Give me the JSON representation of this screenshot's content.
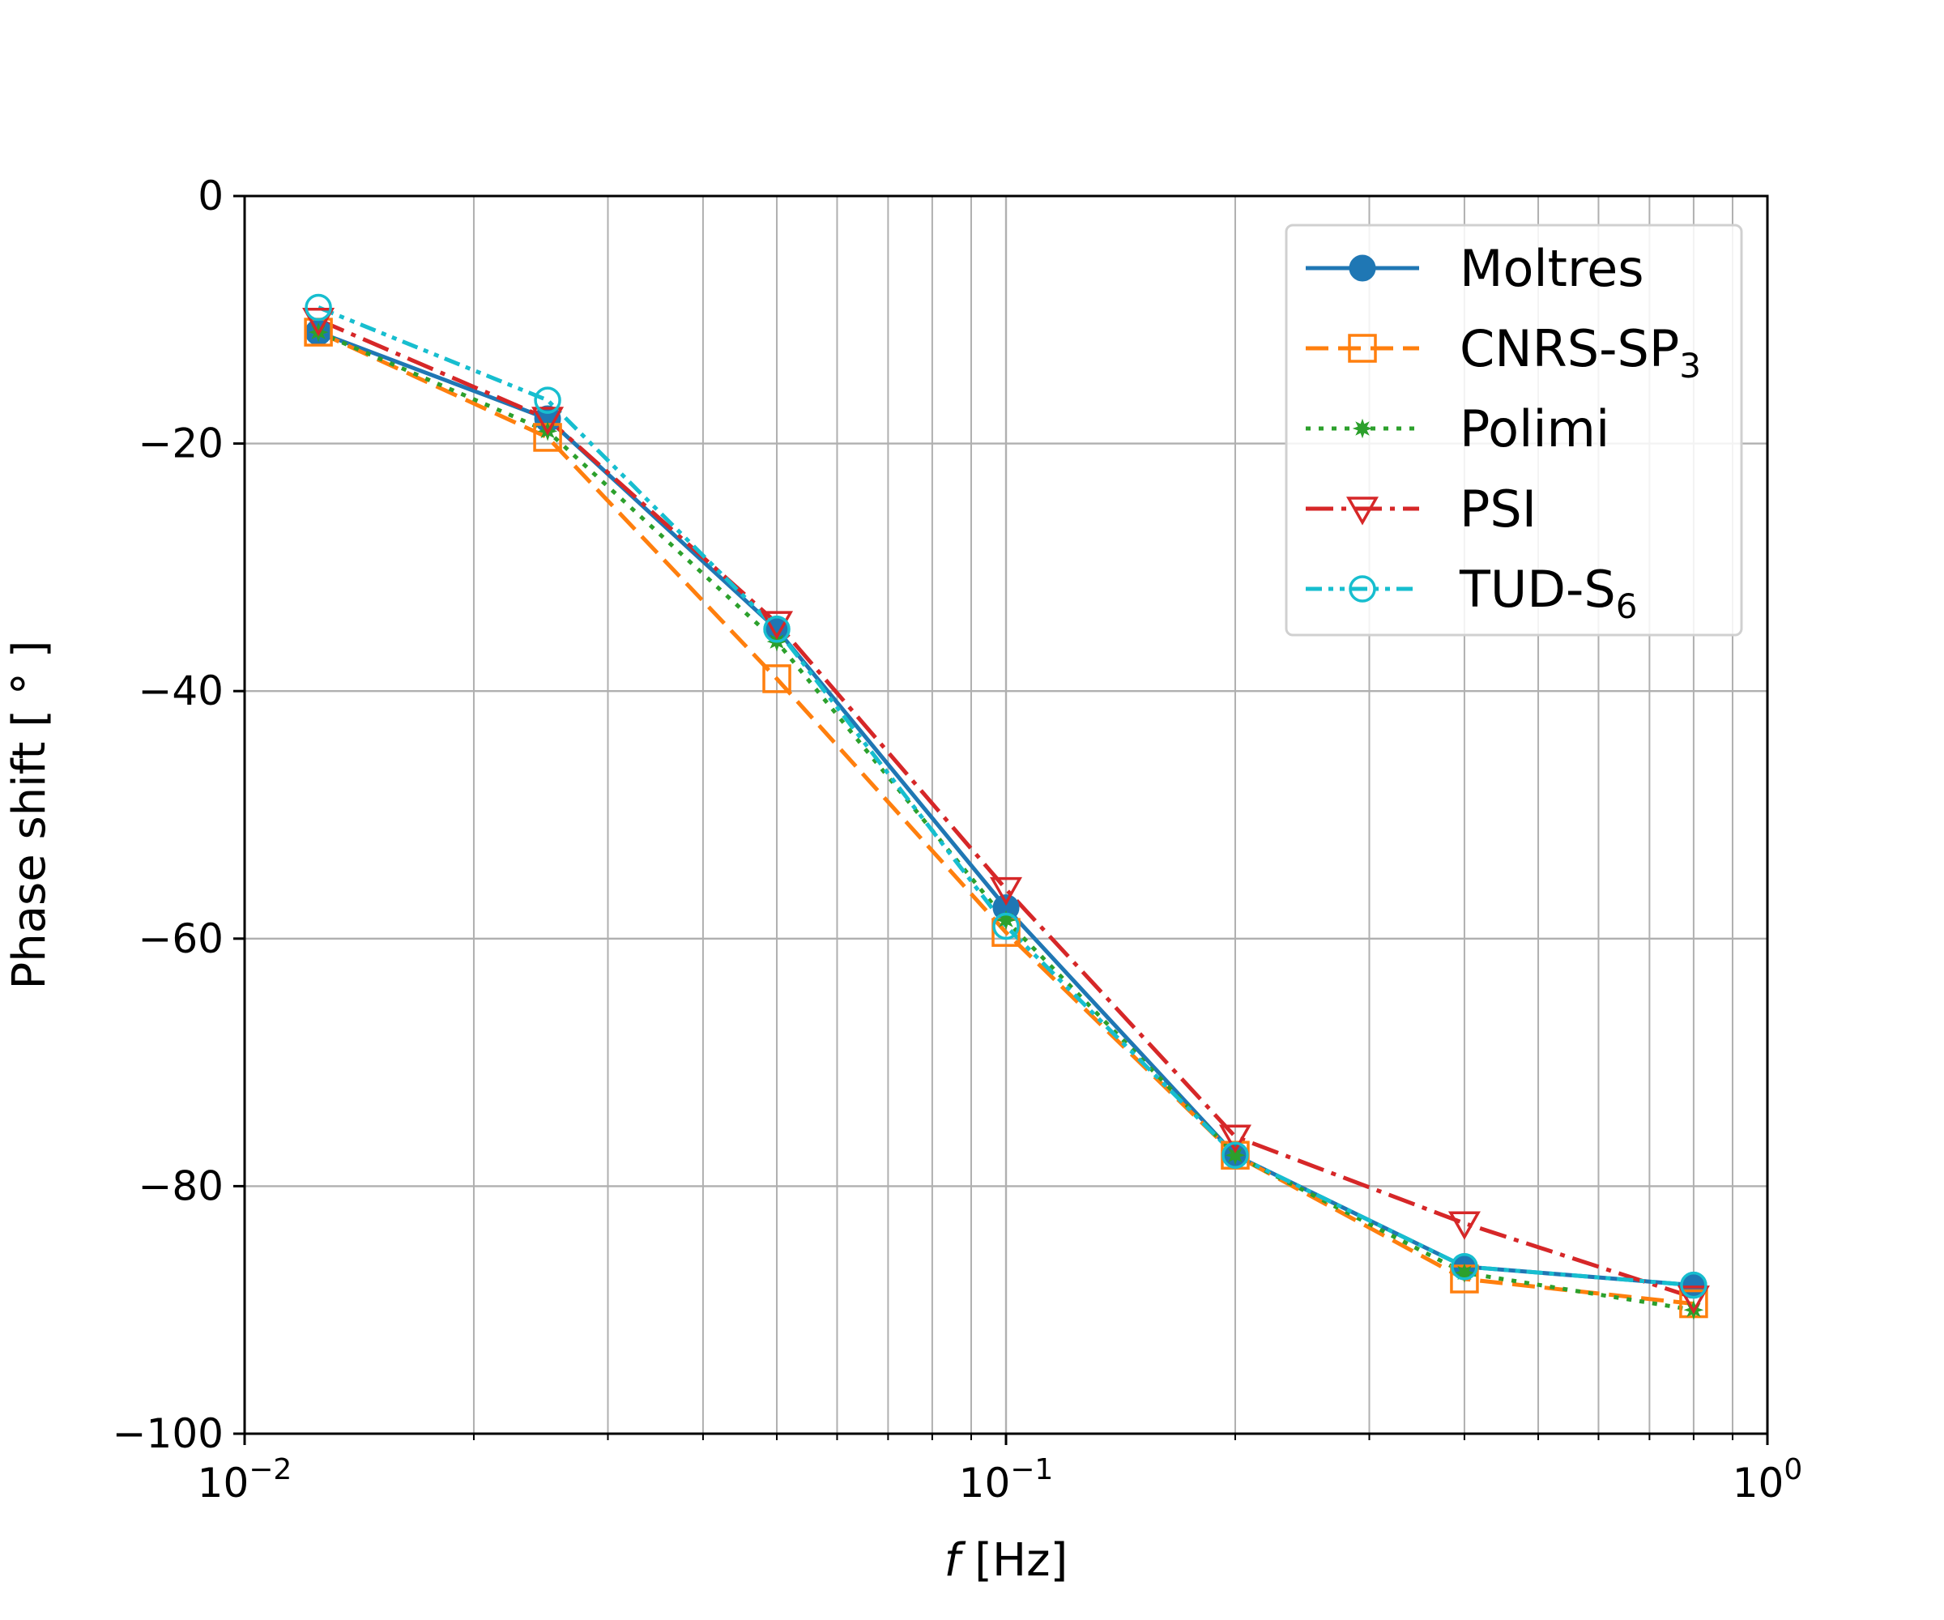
{
  "chart_data": {
    "type": "line",
    "xlabel_var": "f",
    "xlabel_unit": " [Hz]",
    "ylabel": "Phase shift [ ° ]",
    "xscale": "log",
    "xlim": [
      0.01,
      1
    ],
    "ylim": [
      -100,
      0
    ],
    "grid": true,
    "legend_position": "top-right",
    "x_ticks": [
      {
        "base": "10",
        "exp": "−2"
      },
      {
        "base": "10",
        "exp": "−1"
      },
      {
        "base": "10",
        "exp": "0"
      }
    ],
    "y_ticks": [
      "0",
      "−20",
      "−40",
      "−60",
      "−80",
      "−100"
    ],
    "x": [
      0.0125,
      0.025,
      0.05,
      0.1,
      0.2,
      0.4,
      0.8
    ],
    "series": [
      {
        "name": "Moltres",
        "sub": "",
        "color": "#1f77b4",
        "dash": "",
        "marker": "filled-circle",
        "values": [
          -11,
          -18,
          -35,
          -57.5,
          -77.5,
          -86.5,
          -88
        ]
      },
      {
        "name": "CNRS-SP",
        "sub": "3",
        "color": "#ff7f0e",
        "dash": "28,12",
        "marker": "open-square",
        "values": [
          -11,
          -19.5,
          -39,
          -59.5,
          -77.5,
          -87.5,
          -89.5
        ]
      },
      {
        "name": "Polimi",
        "sub": "",
        "color": "#2ca02c",
        "dash": "6,10",
        "marker": "star",
        "values": [
          -11,
          -19,
          -36,
          -58.5,
          -77.5,
          -87,
          -90
        ]
      },
      {
        "name": "PSI",
        "sub": "",
        "color": "#d62728",
        "dash": "34,10,6,10",
        "marker": "open-triangle-down",
        "values": [
          -10,
          -18,
          -34.5,
          -56,
          -76,
          -83,
          -89
        ]
      },
      {
        "name": "TUD-S",
        "sub": "6",
        "color": "#17becf",
        "dash": "20,8,6,8,6,8",
        "marker": "open-circle",
        "values": [
          -9,
          -16.5,
          -35,
          -59,
          -77.5,
          -86.5,
          -88
        ]
      }
    ]
  }
}
